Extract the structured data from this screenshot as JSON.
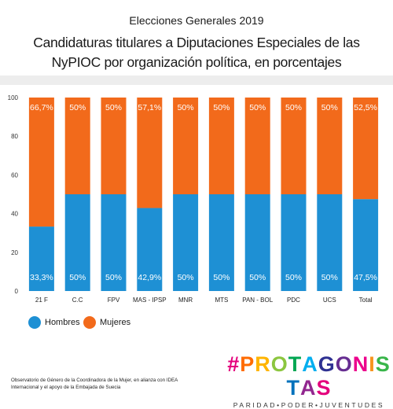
{
  "header": {
    "supertitle": "Elecciones Generales 2019",
    "title": "Candidaturas titulares a Diputaciones Especiales de las NyPIOC por organización política, en porcentajes"
  },
  "colors": {
    "hombres": "#1e90d4",
    "mujeres": "#f26a1b",
    "band": "#ededed",
    "brand_letters": [
      "#e4007c",
      "#ff6b00",
      "#ffb400",
      "#8cc63f",
      "#00a651",
      "#00aeef",
      "#2e3192",
      "#662d91",
      "#ec008c",
      "#f7941d",
      "#39b54a",
      "#0072bc",
      "#92278f"
    ]
  },
  "chart_data": {
    "type": "bar",
    "stacked": true,
    "categories": [
      "21 F",
      "C.C",
      "FPV",
      "MAS - IPSP",
      "MNR",
      "MTS",
      "PAN - BOL",
      "PDC",
      "UCS",
      "Total"
    ],
    "series": [
      {
        "name": "Hombres",
        "values": [
          33.3,
          50,
          50,
          42.9,
          50,
          50,
          50,
          50,
          50,
          47.5
        ],
        "labels": [
          "33,3%",
          "50%",
          "50%",
          "42,9%",
          "50%",
          "50%",
          "50%",
          "50%",
          "50%",
          "47,5%"
        ]
      },
      {
        "name": "Mujeres",
        "values": [
          66.7,
          50,
          50,
          57.1,
          50,
          50,
          50,
          50,
          50,
          52.5
        ],
        "labels": [
          "66,7%",
          "50%",
          "50%",
          "57,1%",
          "50%",
          "50%",
          "50%",
          "50%",
          "50%",
          "52,5%"
        ]
      }
    ],
    "ylim": [
      0,
      100
    ],
    "yticks": [
      0,
      20,
      40,
      60,
      80,
      100
    ],
    "ytick_labels": [
      "0",
      "20",
      "40",
      "60",
      "80",
      "100"
    ],
    "grid": false,
    "legend_position": "bottom-left"
  },
  "legend": {
    "hombres": "Hombres",
    "mujeres": "Mujeres"
  },
  "footer": {
    "note": "Observatorio de Género de la Coordinadora de la Mujer, en alianza con IDEA Internacional y el apoyo de la Embajada de Suecia",
    "brand": "#PROTAGONISTAS",
    "tagline": "PARIDAD•PODER•JUVENTUDES"
  }
}
